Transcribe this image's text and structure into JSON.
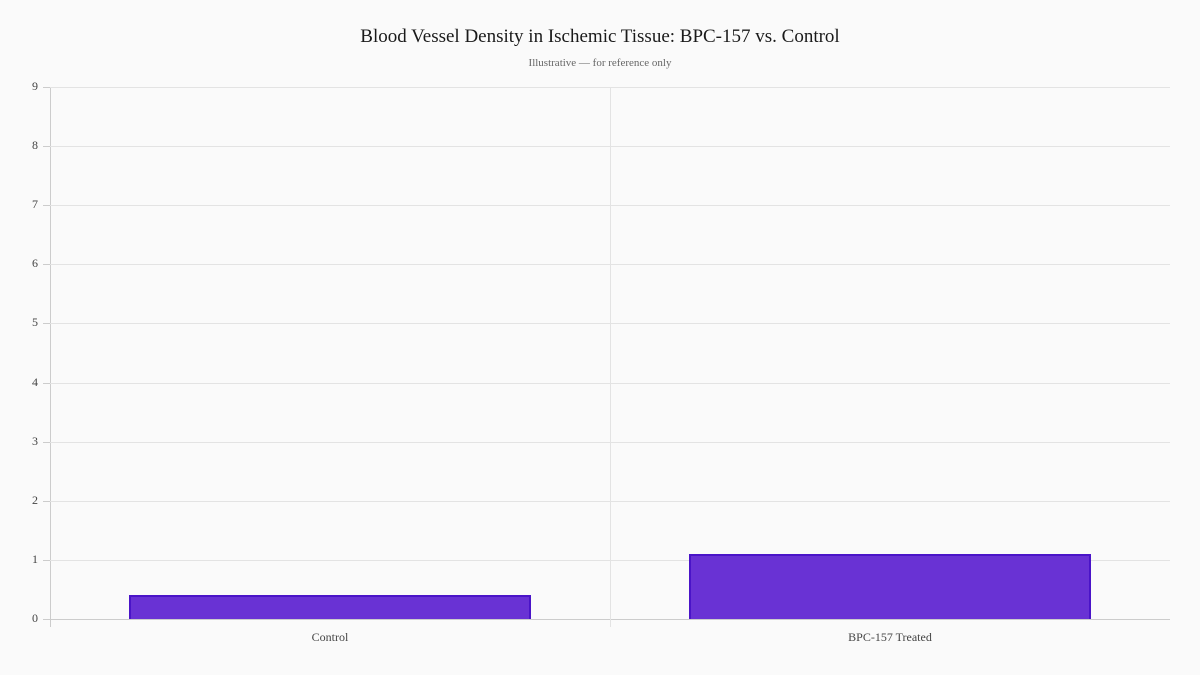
{
  "chart_data": {
    "type": "bar",
    "title": "Blood Vessel Density in Ischemic Tissue: BPC-157 vs. Control",
    "subtitle": "Illustrative — for reference only",
    "categories": [
      "Control",
      "BPC-157 Treated"
    ],
    "values": [
      0.4,
      1.1
    ],
    "xlabel": "",
    "ylabel": "",
    "ylim": [
      0,
      9
    ],
    "yticks": [
      0,
      1,
      2,
      3,
      4,
      5,
      6,
      7,
      8,
      9
    ],
    "grid": true,
    "legend": null,
    "colors": {
      "bar_fill": "#6932d4",
      "bar_border": "#4a14c8"
    }
  }
}
